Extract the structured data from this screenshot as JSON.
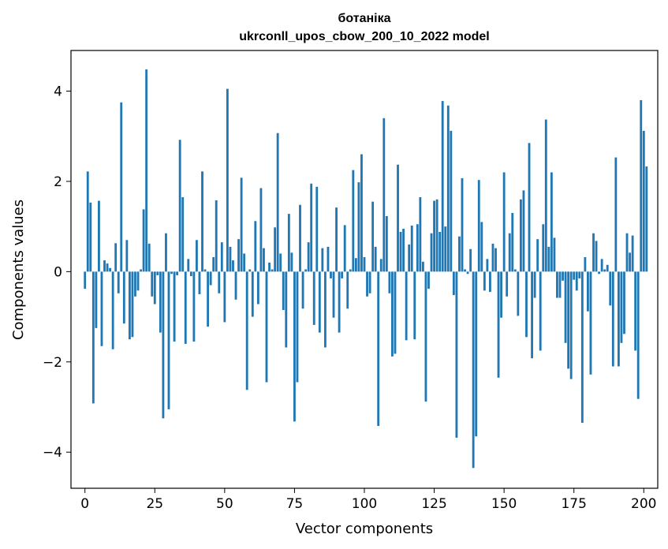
{
  "chart_data": {
    "type": "bar",
    "title": [
      "ботаніка",
      "ukrconll_upos_cbow_200_10_2022 model"
    ],
    "xlabel": "Vector components",
    "ylabel": "Components values",
    "xlim": [
      -5,
      205
    ],
    "ylim": [
      -4.8,
      4.9
    ],
    "xticks": [
      0,
      25,
      50,
      75,
      100,
      125,
      150,
      175,
      200
    ],
    "yticks": [
      -4,
      -2,
      0,
      2,
      4
    ],
    "ytick_labels": [
      "−4",
      "−2",
      "0",
      "2",
      "4"
    ],
    "bar_color": "#1f77b4",
    "grid": false,
    "values": [
      -0.38,
      2.22,
      1.53,
      -2.92,
      -1.25,
      1.57,
      -1.65,
      0.25,
      0.18,
      0.08,
      -1.72,
      0.63,
      -0.48,
      3.75,
      -1.15,
      0.7,
      -1.5,
      -1.45,
      -0.55,
      -0.42,
      0.05,
      1.38,
      4.48,
      0.62,
      -0.55,
      -0.72,
      -0.08,
      -1.35,
      -3.25,
      0.85,
      -3.05,
      -0.05,
      -1.55,
      -0.08,
      2.92,
      1.65,
      -1.6,
      0.28,
      -0.1,
      -1.55,
      0.7,
      -0.5,
      2.22,
      0.05,
      -1.22,
      -0.3,
      0.32,
      1.58,
      -0.48,
      0.65,
      -1.12,
      4.05,
      0.55,
      0.25,
      -0.62,
      0.72,
      2.08,
      0.4,
      -2.62,
      0.05,
      -1.0,
      1.12,
      -0.72,
      1.85,
      0.52,
      -2.45,
      0.2,
      0.05,
      0.98,
      3.07,
      0.4,
      -0.85,
      -1.68,
      1.28,
      0.42,
      -3.32,
      -2.45,
      1.48,
      -0.82,
      0.05,
      0.65,
      1.95,
      -1.18,
      1.88,
      -1.35,
      0.52,
      -1.68,
      0.55,
      -0.15,
      -1.02,
      1.42,
      -1.35,
      -0.15,
      1.03,
      -0.82,
      0.05,
      2.25,
      0.3,
      1.98,
      2.6,
      0.32,
      -0.55,
      -0.48,
      1.55,
      0.55,
      -3.42,
      0.28,
      3.4,
      1.23,
      -0.48,
      -1.88,
      -1.82,
      2.37,
      0.88,
      0.95,
      -1.52,
      0.6,
      1.02,
      -1.5,
      1.05,
      1.65,
      0.22,
      -2.88,
      -0.38,
      0.85,
      1.57,
      1.6,
      0.88,
      3.78,
      1.0,
      3.68,
      3.12,
      -0.52,
      -3.68,
      0.78,
      2.07,
      0.05,
      -0.05,
      0.5,
      -4.35,
      -3.65,
      2.03,
      1.1,
      -0.42,
      0.28,
      -0.45,
      0.62,
      0.52,
      -2.35,
      -1.02,
      2.2,
      -0.55,
      0.85,
      1.3,
      0.05,
      -0.98,
      1.6,
      1.8,
      -1.45,
      2.85,
      -1.92,
      -0.58,
      0.72,
      -1.75,
      1.05,
      3.37,
      0.55,
      2.2,
      0.75,
      -0.58,
      -0.58,
      -0.2,
      -1.58,
      -2.15,
      -2.38,
      -0.18,
      -0.42,
      -0.15,
      -3.35,
      0.32,
      -0.88,
      -2.28,
      0.85,
      0.68,
      -0.05,
      0.28,
      0.05,
      0.15,
      -0.75,
      -2.1,
      2.53,
      -2.1,
      -1.58,
      -1.38,
      0.85,
      0.42,
      0.8,
      -1.75,
      -2.82,
      3.8,
      3.12,
      2.33
    ]
  }
}
